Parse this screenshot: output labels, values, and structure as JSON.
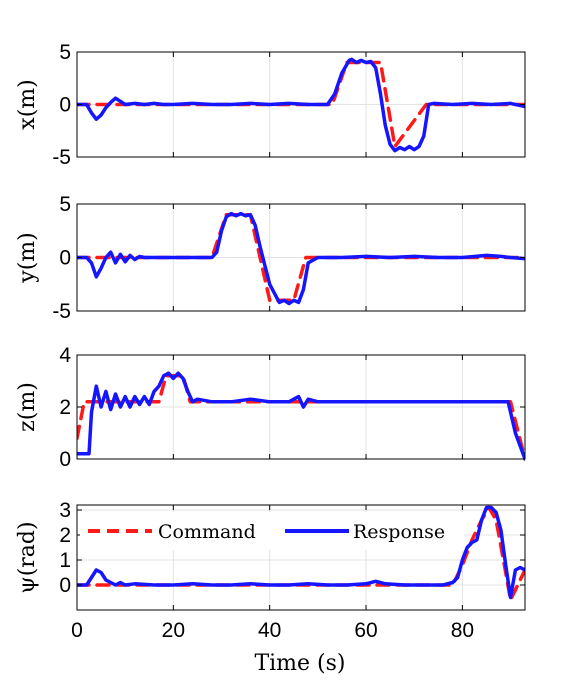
{
  "colors": {
    "command": "#ff1a1a",
    "response": "#1515ff",
    "grid": "#e3e3e3",
    "axes": "#000000"
  },
  "xlabel": "Time (s)",
  "legend": {
    "placement": "top-center",
    "panel": 3
  },
  "chart_data": [
    {
      "type": "line",
      "ylabel": "x(m)",
      "xlim": [
        0,
        93
      ],
      "ylim": [
        -5,
        5
      ],
      "yticks": [
        -5,
        0,
        5
      ],
      "xticks": [
        0,
        20,
        40,
        60,
        80
      ],
      "grid": true,
      "series": [
        {
          "name": "Command",
          "style": "dashed",
          "x": [
            0,
            53,
            56,
            63,
            66,
            72.5,
            93
          ],
          "y": [
            0,
            0,
            4,
            4,
            -4,
            0,
            0
          ]
        },
        {
          "name": "Response",
          "style": "solid",
          "x": [
            0,
            2,
            3,
            4,
            5,
            6,
            7,
            8,
            9,
            10,
            12,
            14,
            16,
            18,
            20,
            24,
            28,
            32,
            36,
            40,
            44,
            48,
            52,
            53.5,
            55,
            56.5,
            57,
            58,
            59,
            60,
            61,
            62,
            63,
            64,
            65,
            66,
            67,
            68,
            69,
            70,
            71,
            72,
            73,
            74,
            78,
            82,
            86,
            90,
            93
          ],
          "y": [
            0,
            0,
            -0.8,
            -1.4,
            -1.0,
            -0.3,
            0.2,
            0.6,
            0.3,
            0,
            0.1,
            0,
            0.1,
            0,
            0,
            0.1,
            0,
            0,
            0.1,
            0,
            0.1,
            0,
            0,
            1.0,
            3.0,
            4.2,
            4.3,
            4.0,
            4.2,
            4.0,
            4.1,
            3.5,
            1.0,
            -2.0,
            -3.8,
            -4.4,
            -4.1,
            -4.3,
            -4.0,
            -4.3,
            -4.0,
            -3.0,
            0,
            0.1,
            0,
            0.1,
            0,
            0.1,
            -0.2
          ]
        }
      ]
    },
    {
      "type": "line",
      "ylabel": "y(m)",
      "xlim": [
        0,
        93
      ],
      "ylim": [
        -5,
        5
      ],
      "yticks": [
        -5,
        0,
        5
      ],
      "xticks": [
        0,
        20,
        40,
        60,
        80
      ],
      "grid": true,
      "series": [
        {
          "name": "Command",
          "style": "dashed",
          "x": [
            0,
            28,
            31,
            36,
            40,
            45,
            47.5,
            93
          ],
          "y": [
            0,
            0,
            4,
            4,
            -4,
            -4,
            0,
            0
          ]
        },
        {
          "name": "Response",
          "style": "solid",
          "x": [
            0,
            2,
            3,
            4,
            5,
            6,
            7,
            8,
            9,
            10,
            11,
            12,
            13,
            14,
            16,
            20,
            24,
            28,
            29,
            30,
            31,
            32,
            33,
            34,
            35,
            36,
            37,
            38,
            40,
            42,
            43,
            44,
            45,
            46,
            47,
            48,
            50,
            55,
            60,
            65,
            70,
            75,
            80,
            85,
            88,
            90,
            93
          ],
          "y": [
            0,
            0,
            -0.5,
            -1.8,
            -1.0,
            0,
            0.5,
            -0.5,
            0.3,
            -0.4,
            0.2,
            -0.2,
            0.1,
            0,
            0,
            0,
            0,
            0,
            0.5,
            2.5,
            3.8,
            4.1,
            3.9,
            4.1,
            3.9,
            4.0,
            3.0,
            1.0,
            -2.5,
            -4.2,
            -4.0,
            -4.3,
            -4.0,
            -4.2,
            -3.0,
            -0.5,
            0,
            0,
            0.1,
            0,
            0.1,
            0,
            0,
            0.2,
            0.1,
            0,
            -0.1
          ]
        }
      ]
    },
    {
      "type": "line",
      "ylabel": "z(m)",
      "xlim": [
        0,
        93
      ],
      "ylim": [
        0,
        4
      ],
      "yticks": [
        0,
        2,
        4
      ],
      "xticks": [
        0,
        20,
        40,
        60,
        80
      ],
      "grid": true,
      "series": [
        {
          "name": "Command",
          "style": "dashed",
          "x": [
            0,
            1.5,
            17,
            18.5,
            22,
            23.5,
            90,
            93
          ],
          "y": [
            0.8,
            2.2,
            2.2,
            3.2,
            3.2,
            2.2,
            2.2,
            0
          ]
        },
        {
          "name": "Response",
          "style": "solid",
          "x": [
            0,
            2.5,
            3,
            4,
            5,
            6,
            7,
            8,
            9,
            10,
            11,
            12,
            13,
            14,
            15,
            16,
            17,
            18,
            19,
            20,
            21,
            22,
            23,
            24,
            25,
            28,
            32,
            36,
            40,
            44,
            46,
            47,
            48,
            50,
            55,
            60,
            65,
            70,
            75,
            80,
            85,
            89.5,
            91,
            93
          ],
          "y": [
            0.2,
            0.2,
            1.8,
            2.8,
            2.0,
            2.6,
            1.9,
            2.5,
            2.0,
            2.4,
            2.0,
            2.4,
            2.1,
            2.4,
            2.1,
            2.6,
            2.8,
            3.2,
            3.3,
            3.1,
            3.3,
            3.1,
            2.6,
            2.2,
            2.3,
            2.2,
            2.2,
            2.3,
            2.2,
            2.2,
            2.4,
            2.0,
            2.3,
            2.2,
            2.2,
            2.2,
            2.2,
            2.2,
            2.2,
            2.2,
            2.2,
            2.2,
            1.0,
            0
          ]
        }
      ]
    },
    {
      "type": "line",
      "ylabel": "ψ(rad)",
      "xlim": [
        0,
        93
      ],
      "ylim": [
        -1,
        3.2
      ],
      "yticks": [
        0,
        1,
        2,
        3
      ],
      "xticks": [
        0,
        20,
        40,
        60,
        80
      ],
      "xticklabels": [
        "0",
        "20",
        "40",
        "60",
        "80"
      ],
      "grid": true,
      "series": [
        {
          "name": "Command",
          "style": "dashed",
          "x": [
            0,
            78,
            80,
            82,
            84,
            85.5,
            87,
            89,
            90,
            93
          ],
          "y": [
            0,
            0,
            0.8,
            1.8,
            2.6,
            3.1,
            2.6,
            0.5,
            -0.6,
            0.6
          ]
        },
        {
          "name": "Response",
          "style": "solid",
          "x": [
            0,
            2,
            3,
            4,
            5,
            6,
            7,
            8,
            9,
            10,
            12,
            16,
            20,
            24,
            28,
            32,
            36,
            40,
            44,
            48,
            52,
            56,
            60,
            62,
            64,
            68,
            72,
            76,
            78,
            79,
            80,
            81,
            82,
            83,
            84,
            85,
            86,
            87,
            88,
            89,
            90,
            91,
            92,
            93
          ],
          "y": [
            0,
            0,
            0.3,
            0.6,
            0.5,
            0.2,
            0.1,
            0,
            0.1,
            0,
            0.05,
            0,
            0,
            0.05,
            0,
            0,
            0.05,
            0,
            0,
            0.05,
            0,
            0,
            0.05,
            0.15,
            0.05,
            0,
            0,
            0,
            0.1,
            0.3,
            1.0,
            1.5,
            1.7,
            1.8,
            2.6,
            3.1,
            3.1,
            2.9,
            2.2,
            0.8,
            -0.5,
            0.6,
            0.7,
            0.6
          ]
        }
      ]
    }
  ]
}
